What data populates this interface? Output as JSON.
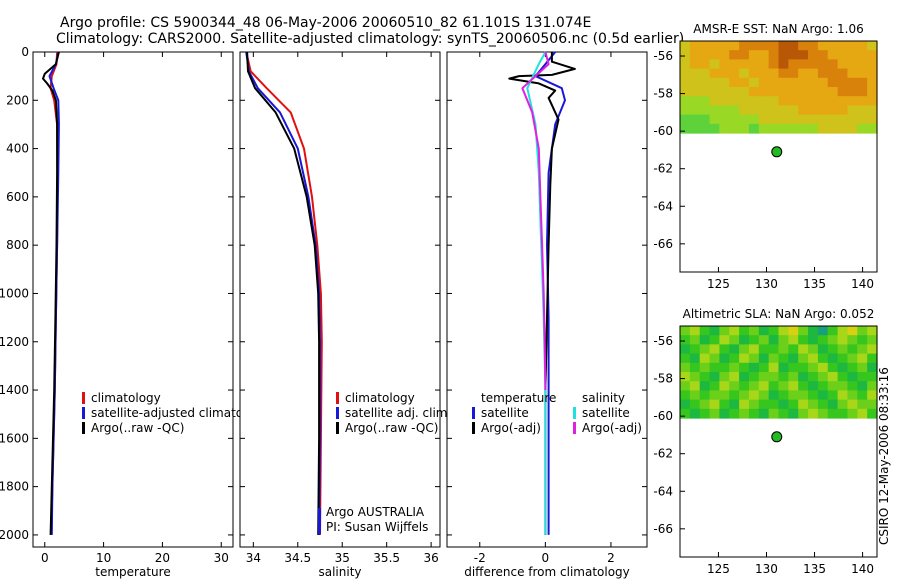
{
  "title": {
    "line1": "Argo profile: CS 5900344_48 06-May-2006 20060510_82 61.101S 131.074E",
    "line2": "Climatology: CARS2000. Satellite-adjusted climatology: synTS_20060506.nc (0.5d earlier)"
  },
  "credit": "CSIRO 12-May-2006 08:33:16",
  "colors": {
    "red": "#e01010",
    "blue": "#1818d8",
    "black": "#000000",
    "cyan": "#20e0e0",
    "magenta": "#e020e0",
    "float": "#22bb22"
  },
  "chart_data": [
    {
      "type": "line",
      "name": "temperature-profile",
      "xlabel": "temperature",
      "xlim": [
        -2,
        32
      ],
      "ylim": [
        2050,
        0
      ],
      "xticks": [
        0,
        10,
        20,
        30
      ],
      "xtick_labels": [
        "0",
        "10",
        "20",
        "30"
      ],
      "yticks": [
        0,
        200,
        400,
        600,
        800,
        1000,
        1200,
        1400,
        1600,
        1800,
        2000
      ],
      "ytick_labels": [
        "0",
        "200",
        "400",
        "600",
        "800",
        "1000",
        "1200",
        "1400",
        "1600",
        "1800",
        "2000"
      ],
      "legend": [
        "climatology",
        "satellite-adjusted climatology",
        "Argo(..raw -QC)"
      ],
      "series": [
        {
          "name": "climatology",
          "color": "#e01010",
          "x": [
            2.1,
            2.0,
            1.2,
            1.0,
            1.6,
            2.1,
            2.2,
            2.1,
            1.9,
            1.7,
            1.5,
            1.3,
            1.1
          ],
          "y": [
            0,
            50,
            100,
            150,
            200,
            300,
            500,
            800,
            1100,
            1400,
            1600,
            1800,
            2000
          ]
        },
        {
          "name": "satellite-adjusted climatology",
          "color": "#1818d8",
          "x": [
            2.3,
            1.9,
            0.8,
            1.5,
            2.3,
            2.4,
            2.3,
            2.1,
            1.9,
            1.7,
            1.5,
            1.3,
            1.2
          ],
          "y": [
            0,
            50,
            100,
            150,
            200,
            300,
            500,
            800,
            1100,
            1400,
            1600,
            1800,
            2000
          ]
        },
        {
          "name": "Argo(..raw -QC)",
          "color": "#000000",
          "x": [
            2.4,
            1.9,
            0.0,
            -0.3,
            0.4,
            1.3,
            1.9,
            2.0,
            2.1,
            2.1,
            2.0,
            1.8,
            1.6,
            1.4,
            1.2,
            1.0
          ],
          "y": [
            0,
            50,
            90,
            110,
            130,
            160,
            200,
            250,
            300,
            500,
            800,
            1100,
            1400,
            1600,
            1800,
            2000
          ]
        }
      ]
    },
    {
      "type": "line",
      "name": "salinity-profile",
      "xlabel": "salinity",
      "xlim": [
        33.85,
        36.1
      ],
      "ylim": [
        2050,
        0
      ],
      "xticks": [
        34,
        34.5,
        35,
        35.5,
        36
      ],
      "xtick_labels": [
        "34",
        "34.5",
        "35",
        "35.5",
        "36"
      ],
      "legend": [
        "climatology",
        "satellite adj. clim.",
        "Argo(..raw -QC)"
      ],
      "annotation": [
        "Argo AUSTRALIA",
        "PI: Susan Wijffels"
      ],
      "series": [
        {
          "name": "climatology",
          "color": "#e01010",
          "x": [
            33.92,
            33.97,
            34.15,
            34.42,
            34.57,
            34.66,
            34.72,
            34.76,
            34.77,
            34.76,
            34.75
          ],
          "y": [
            0,
            80,
            150,
            250,
            400,
            600,
            800,
            1000,
            1200,
            1600,
            2000
          ]
        },
        {
          "name": "satellite adj. clim.",
          "color": "#1818d8",
          "x": [
            33.92,
            33.95,
            34.05,
            34.3,
            34.5,
            34.62,
            34.7,
            34.74,
            34.75,
            34.75,
            34.74
          ],
          "y": [
            0,
            80,
            150,
            250,
            400,
            600,
            800,
            1000,
            1200,
            1600,
            2000
          ]
        },
        {
          "name": "Argo(..raw -QC)",
          "color": "#000000",
          "x": [
            33.93,
            33.94,
            34.02,
            34.25,
            34.46,
            34.6,
            34.69,
            34.73,
            34.74,
            34.74,
            34.73
          ],
          "y": [
            0,
            80,
            150,
            250,
            400,
            600,
            800,
            1000,
            1200,
            1600,
            2000
          ]
        }
      ]
    },
    {
      "type": "line",
      "name": "difference-profile",
      "xlabel": "difference from climatology",
      "xlim": [
        -3,
        3.1
      ],
      "ylim": [
        2050,
        0
      ],
      "xticks": [
        -2,
        0,
        2
      ],
      "xtick_labels": [
        "-2",
        "0",
        "2"
      ],
      "legend_temperature": [
        "temperature",
        "satellite",
        "Argo(-adj)"
      ],
      "legend_salinity": [
        "salinity",
        "satellite",
        "Argo(-adj)"
      ],
      "series": [
        {
          "name": "temperature satellite",
          "color": "#1818d8",
          "x": [
            0.3,
            0.0,
            -0.3,
            0.5,
            0.6,
            0.3,
            0.1,
            0.05,
            0.1,
            0.1,
            0.1,
            0.1
          ],
          "y": [
            0,
            50,
            100,
            150,
            200,
            300,
            500,
            800,
            1100,
            1400,
            1700,
            2000
          ]
        },
        {
          "name": "temperature Argo(-adj)",
          "color": "#000000",
          "x": [
            0.2,
            0.2,
            0.9,
            0.2,
            -0.8,
            -1.1,
            -0.2,
            0.3,
            0.1,
            0.2,
            0.4,
            0.2,
            0.15,
            0.1,
            0.05,
            0.0,
            0.0,
            0.0
          ],
          "y": [
            0,
            40,
            70,
            95,
            100,
            110,
            130,
            160,
            190,
            220,
            280,
            400,
            550,
            800,
            1100,
            1400,
            1700,
            2000
          ]
        },
        {
          "name": "salinity satellite",
          "color": "#20e0e0",
          "x": [
            0.0,
            -0.2,
            -0.55,
            -0.3,
            -0.2,
            -0.15,
            -0.1,
            -0.05,
            0.0,
            0.0,
            0.0
          ],
          "y": [
            0,
            50,
            150,
            300,
            500,
            700,
            900,
            1100,
            1400,
            1700,
            2000
          ]
        },
        {
          "name": "salinity Argo(-adj)",
          "color": "#e020e0",
          "x": [
            0.0,
            0.1,
            -0.7,
            -0.4,
            -0.2,
            -0.15,
            -0.1,
            -0.05,
            -0.02,
            0.0
          ],
          "y": [
            0,
            50,
            150,
            250,
            400,
            600,
            800,
            1000,
            1200,
            1400
          ]
        }
      ]
    },
    {
      "type": "heatmap",
      "name": "amsr-sst-map",
      "title": "AMSR-E SST: NaN Argo: 1.06",
      "xlim": [
        121,
        141.5
      ],
      "ylim": [
        -67.5,
        -55.2
      ],
      "data_extent_y": [
        -60.1,
        -55.2
      ],
      "xticks": [
        125,
        130,
        135,
        140
      ],
      "xtick_labels": [
        "125",
        "130",
        "135",
        "140"
      ],
      "yticks": [
        -56,
        -58,
        -60,
        -62,
        -64,
        -66
      ],
      "ytick_labels": [
        "-56",
        "-58",
        "-60",
        "-62",
        "-64",
        "-66"
      ],
      "float_position": [
        131.07,
        -61.1
      ],
      "palette": [
        "#5ed23a",
        "#9ad826",
        "#cfc21a",
        "#e6a812",
        "#d8820c",
        "#b85806"
      ],
      "grid": [
        [
          2,
          3,
          3,
          3,
          3,
          3,
          4,
          4,
          4,
          4,
          5,
          5,
          4,
          4,
          3,
          3,
          3,
          3,
          3,
          2
        ],
        [
          2,
          3,
          3,
          3,
          3,
          4,
          4,
          3,
          3,
          4,
          5,
          5,
          5,
          4,
          4,
          3,
          3,
          3,
          3,
          3
        ],
        [
          2,
          3,
          3,
          2,
          3,
          3,
          3,
          3,
          3,
          4,
          5,
          4,
          4,
          4,
          4,
          4,
          3,
          3,
          3,
          3
        ],
        [
          2,
          2,
          2,
          3,
          3,
          3,
          2,
          3,
          3,
          3,
          4,
          4,
          3,
          3,
          4,
          4,
          4,
          3,
          3,
          3
        ],
        [
          2,
          2,
          2,
          2,
          2,
          3,
          3,
          2,
          3,
          3,
          3,
          3,
          3,
          3,
          3,
          4,
          4,
          4,
          4,
          3
        ],
        [
          2,
          2,
          2,
          2,
          2,
          2,
          2,
          3,
          3,
          3,
          3,
          3,
          3,
          3,
          3,
          3,
          4,
          4,
          4,
          3
        ],
        [
          1,
          1,
          1,
          2,
          2,
          2,
          2,
          2,
          2,
          2,
          3,
          3,
          3,
          3,
          3,
          3,
          3,
          3,
          3,
          3
        ],
        [
          1,
          1,
          1,
          1,
          1,
          1,
          2,
          2,
          2,
          2,
          2,
          2,
          3,
          3,
          3,
          3,
          3,
          2,
          2,
          2
        ],
        [
          0,
          0,
          0,
          1,
          1,
          1,
          1,
          1,
          2,
          2,
          2,
          2,
          2,
          2,
          2,
          2,
          2,
          2,
          2,
          2
        ],
        [
          0,
          0,
          0,
          0,
          1,
          1,
          1,
          0,
          1,
          1,
          1,
          1,
          1,
          1,
          2,
          2,
          2,
          2,
          1,
          1
        ]
      ]
    },
    {
      "type": "heatmap",
      "name": "altimetric-sla-map",
      "title": "Altimetric SLA: NaN Argo: 0.052",
      "xlim": [
        121,
        141.5
      ],
      "ylim": [
        -67.5,
        -55.2
      ],
      "data_extent_y": [
        -60.1,
        -55.2
      ],
      "xticks": [
        125,
        130,
        135,
        140
      ],
      "xtick_labels": [
        "125",
        "130",
        "135",
        "140"
      ],
      "yticks": [
        -56,
        -58,
        -60,
        -62,
        -64,
        -66
      ],
      "ytick_labels": [
        "-56",
        "-58",
        "-60",
        "-62",
        "-64",
        "-66"
      ],
      "float_position": [
        131.07,
        -61.1
      ],
      "palette": [
        "#18a078",
        "#1cb840",
        "#36c61e",
        "#6cd01a",
        "#a8d618",
        "#d6d212"
      ],
      "grid": [
        [
          3,
          4,
          2,
          1,
          3,
          4,
          2,
          3,
          1,
          2,
          4,
          5,
          3,
          1,
          0,
          2,
          4,
          5,
          3,
          4
        ],
        [
          2,
          3,
          1,
          2,
          4,
          3,
          1,
          2,
          3,
          1,
          3,
          4,
          2,
          1,
          2,
          3,
          4,
          3,
          2,
          3
        ],
        [
          1,
          2,
          3,
          4,
          2,
          1,
          3,
          4,
          2,
          2,
          3,
          2,
          4,
          3,
          1,
          2,
          3,
          2,
          3,
          4
        ],
        [
          2,
          1,
          4,
          3,
          1,
          2,
          4,
          3,
          1,
          3,
          2,
          1,
          3,
          4,
          2,
          1,
          2,
          3,
          4,
          2
        ],
        [
          3,
          2,
          3,
          2,
          2,
          3,
          2,
          1,
          2,
          4,
          1,
          2,
          2,
          3,
          4,
          2,
          1,
          2,
          3,
          1
        ],
        [
          4,
          3,
          2,
          1,
          3,
          4,
          1,
          2,
          3,
          3,
          2,
          3,
          1,
          2,
          3,
          4,
          2,
          1,
          2,
          2
        ],
        [
          3,
          4,
          1,
          2,
          4,
          3,
          2,
          3,
          4,
          2,
          3,
          4,
          2,
          1,
          2,
          3,
          3,
          2,
          1,
          3
        ],
        [
          2,
          3,
          2,
          3,
          3,
          2,
          3,
          4,
          3,
          1,
          2,
          3,
          3,
          2,
          1,
          2,
          4,
          3,
          2,
          4
        ],
        [
          1,
          2,
          3,
          4,
          2,
          1,
          4,
          3,
          2,
          2,
          1,
          2,
          4,
          3,
          2,
          1,
          3,
          4,
          3,
          3
        ],
        [
          2,
          1,
          2,
          3,
          1,
          2,
          3,
          2,
          1,
          3,
          2,
          1,
          3,
          4,
          3,
          2,
          2,
          3,
          4,
          2
        ]
      ]
    }
  ]
}
